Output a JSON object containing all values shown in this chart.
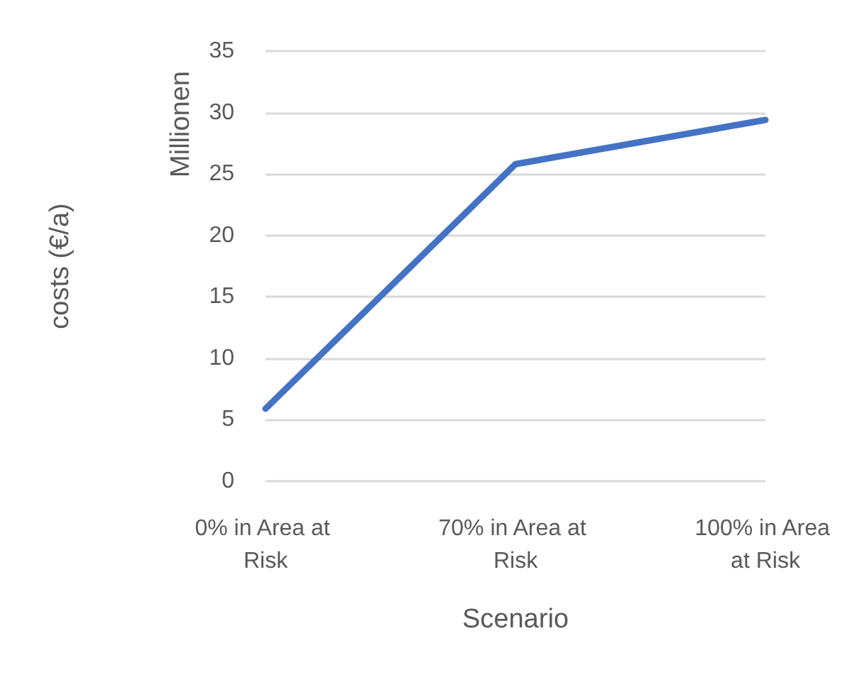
{
  "chart_data": {
    "type": "line",
    "xlabel": "Scenario",
    "ylabel": "costs (€/a)",
    "annotations": [
      "Millionen"
    ],
    "categories": [
      "0% in Area at Risk",
      "70% in Area at Risk",
      "100% in Area at Risk"
    ],
    "series": [
      {
        "color": "#4472c4",
        "values": [
          5.9,
          25.8,
          29.4
        ]
      }
    ],
    "ylim": [
      0,
      35
    ],
    "yticks": [
      0,
      5,
      10,
      15,
      20,
      25,
      30,
      35
    ],
    "grid": "y",
    "marker": "none",
    "line_style": "solid"
  }
}
